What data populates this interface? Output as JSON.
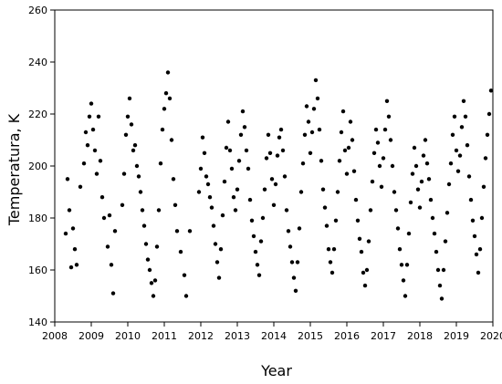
{
  "chart_data": {
    "type": "scatter",
    "title": "",
    "xlabel": "Year",
    "ylabel": "Temperatura, K",
    "xlim": [
      2008,
      2020
    ],
    "ylim": [
      140,
      260
    ],
    "xticks": [
      2008,
      2009,
      2010,
      2011,
      2012,
      2013,
      2014,
      2015,
      2016,
      2017,
      2018,
      2019,
      2020
    ],
    "yticks": [
      140,
      160,
      180,
      200,
      220,
      240,
      260
    ],
    "grid": false,
    "marker_color": "#000000",
    "series": [
      {
        "x": [
          2008.3,
          2008.35,
          2008.4,
          2008.45,
          2008.5,
          2008.55,
          2008.6,
          2008.7,
          2008.8,
          2008.85,
          2008.9,
          2008.95,
          2009.0,
          2009.05,
          2009.1,
          2009.15,
          2009.2,
          2009.25,
          2009.3,
          2009.35,
          2009.45,
          2009.5,
          2009.55,
          2009.6,
          2009.65,
          2009.85,
          2009.9,
          2009.95,
          2010.0,
          2010.05,
          2010.1,
          2010.15,
          2010.2,
          2010.25,
          2010.3,
          2010.35,
          2010.4,
          2010.45,
          2010.5,
          2010.55,
          2010.6,
          2010.65,
          2010.7,
          2010.75,
          2010.8,
          2010.85,
          2010.9,
          2010.95,
          2011.0,
          2011.05,
          2011.1,
          2011.15,
          2011.2,
          2011.25,
          2011.3,
          2011.35,
          2011.45,
          2011.55,
          2011.6,
          2011.7,
          2011.95,
          2012.0,
          2012.05,
          2012.1,
          2012.15,
          2012.2,
          2012.25,
          2012.3,
          2012.35,
          2012.4,
          2012.45,
          2012.5,
          2012.55,
          2012.6,
          2012.65,
          2012.7,
          2012.75,
          2012.8,
          2012.85,
          2012.9,
          2012.95,
          2013.0,
          2013.05,
          2013.1,
          2013.15,
          2013.2,
          2013.25,
          2013.3,
          2013.35,
          2013.4,
          2013.45,
          2013.5,
          2013.55,
          2013.6,
          2013.65,
          2013.7,
          2013.75,
          2013.8,
          2013.85,
          2013.9,
          2013.95,
          2014.0,
          2014.05,
          2014.1,
          2014.15,
          2014.2,
          2014.25,
          2014.3,
          2014.35,
          2014.4,
          2014.45,
          2014.5,
          2014.55,
          2014.6,
          2014.65,
          2014.7,
          2014.75,
          2014.8,
          2014.85,
          2014.9,
          2014.95,
          2015.0,
          2015.05,
          2015.1,
          2015.15,
          2015.2,
          2015.25,
          2015.3,
          2015.35,
          2015.4,
          2015.45,
          2015.5,
          2015.55,
          2015.6,
          2015.65,
          2015.7,
          2015.75,
          2015.8,
          2015.85,
          2015.9,
          2015.95,
          2016.0,
          2016.05,
          2016.1,
          2016.15,
          2016.2,
          2016.25,
          2016.3,
          2016.35,
          2016.4,
          2016.45,
          2016.5,
          2016.55,
          2016.6,
          2016.65,
          2016.7,
          2016.75,
          2016.8,
          2016.85,
          2016.9,
          2016.95,
          2017.0,
          2017.05,
          2017.1,
          2017.15,
          2017.2,
          2017.25,
          2017.3,
          2017.35,
          2017.4,
          2017.45,
          2017.5,
          2017.55,
          2017.6,
          2017.65,
          2017.7,
          2017.75,
          2017.8,
          2017.85,
          2017.9,
          2017.95,
          2018.0,
          2018.05,
          2018.1,
          2018.15,
          2018.2,
          2018.25,
          2018.3,
          2018.35,
          2018.4,
          2018.45,
          2018.5,
          2018.55,
          2018.6,
          2018.65,
          2018.7,
          2018.75,
          2018.8,
          2018.85,
          2018.9,
          2018.95,
          2019.0,
          2019.05,
          2019.1,
          2019.15,
          2019.2,
          2019.25,
          2019.3,
          2019.35,
          2019.4,
          2019.45,
          2019.5,
          2019.55,
          2019.6,
          2019.65,
          2019.7,
          2019.75,
          2019.8,
          2019.85,
          2019.9,
          2019.95
        ],
        "y": [
          174,
          195,
          183,
          161,
          176,
          168,
          162,
          192,
          201,
          213,
          208,
          219,
          224,
          214,
          206,
          197,
          219,
          202,
          188,
          180,
          169,
          181,
          162,
          151,
          175,
          185,
          197,
          212,
          219,
          226,
          216,
          206,
          208,
          200,
          196,
          190,
          183,
          177,
          170,
          164,
          160,
          155,
          150,
          156,
          169,
          183,
          201,
          214,
          222,
          228,
          236,
          226,
          210,
          195,
          185,
          175,
          167,
          158,
          150,
          175,
          190,
          199,
          211,
          205,
          196,
          193,
          188,
          184,
          177,
          170,
          163,
          157,
          168,
          181,
          194,
          207,
          217,
          206,
          199,
          188,
          183,
          191,
          202,
          212,
          221,
          215,
          206,
          199,
          187,
          179,
          173,
          167,
          162,
          158,
          171,
          180,
          191,
          203,
          212,
          205,
          195,
          185,
          193,
          204,
          211,
          214,
          206,
          196,
          183,
          175,
          169,
          163,
          157,
          152,
          163,
          176,
          190,
          201,
          212,
          223,
          217,
          205,
          213,
          222,
          233,
          226,
          214,
          202,
          191,
          184,
          177,
          168,
          163,
          159,
          168,
          179,
          190,
          202,
          213,
          221,
          206,
          197,
          207,
          217,
          210,
          198,
          187,
          179,
          172,
          167,
          159,
          154,
          160,
          171,
          183,
          194,
          205,
          214,
          209,
          200,
          192,
          203,
          214,
          225,
          219,
          210,
          200,
          190,
          183,
          176,
          168,
          162,
          156,
          150,
          162,
          174,
          186,
          197,
          207,
          200,
          191,
          184,
          194,
          204,
          210,
          201,
          195,
          187,
          180,
          174,
          167,
          160,
          154,
          149,
          160,
          171,
          182,
          193,
          201,
          212,
          219,
          206,
          198,
          204,
          215,
          225,
          219,
          208,
          196,
          187,
          179,
          173,
          166,
          159,
          168,
          180,
          192,
          203,
          212,
          220,
          229
        ]
      }
    ]
  }
}
